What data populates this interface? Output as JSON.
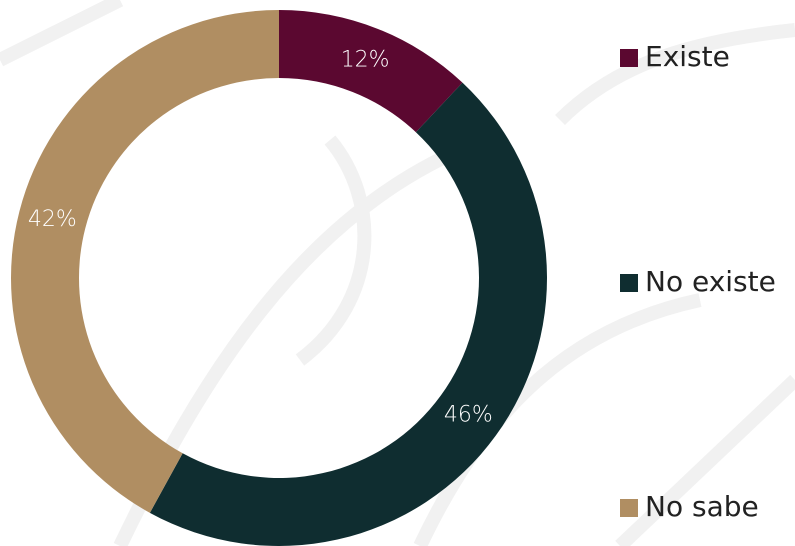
{
  "chart_data": {
    "type": "pie",
    "categories": [
      "Existe",
      "No existe",
      "No sabe"
    ],
    "values": [
      12,
      46,
      42
    ],
    "value_labels": [
      "12%",
      "46%",
      "42%"
    ],
    "colors": [
      "#5b0830",
      "#0f2d30",
      "#b08e62"
    ],
    "donut": true,
    "legend": "right"
  }
}
